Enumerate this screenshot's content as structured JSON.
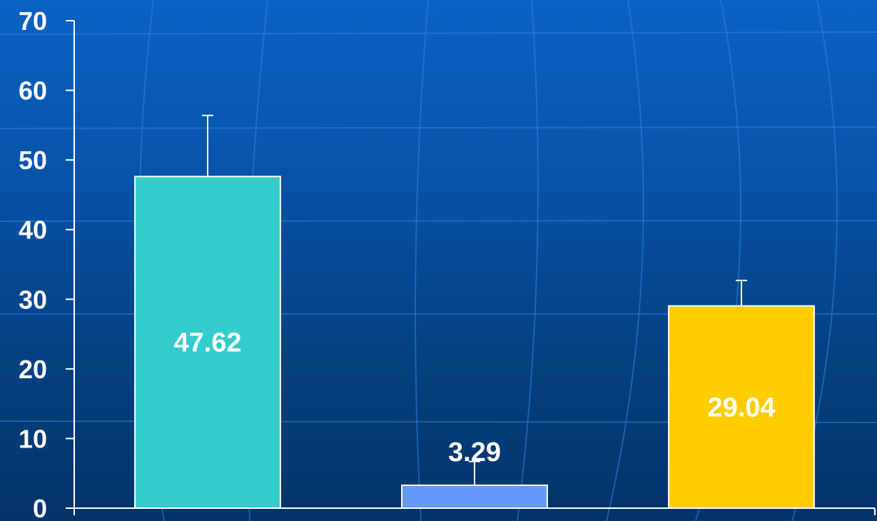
{
  "chart_data": {
    "type": "bar",
    "categories": [
      "",
      "",
      ""
    ],
    "values": [
      47.62,
      3.29,
      29.04
    ],
    "error_upper": [
      56.4,
      6.7,
      32.7
    ],
    "data_labels": [
      "47.62",
      "3.29",
      "29.04"
    ],
    "ylim": [
      0,
      70
    ],
    "yticks": [
      0,
      10,
      20,
      30,
      40,
      50,
      60,
      70
    ],
    "ytick_labels": [
      "0",
      "10",
      "20",
      "30",
      "40",
      "50",
      "60",
      "70"
    ],
    "bar_colors": [
      "#33cccc",
      "#6699ff",
      "#ffcc00"
    ],
    "title": "",
    "xlabel": "",
    "ylabel": "",
    "grid": false,
    "legend": "none"
  },
  "colors": {
    "background": "#0752a8",
    "axis": "#ffffff",
    "text": "#ffffff"
  }
}
